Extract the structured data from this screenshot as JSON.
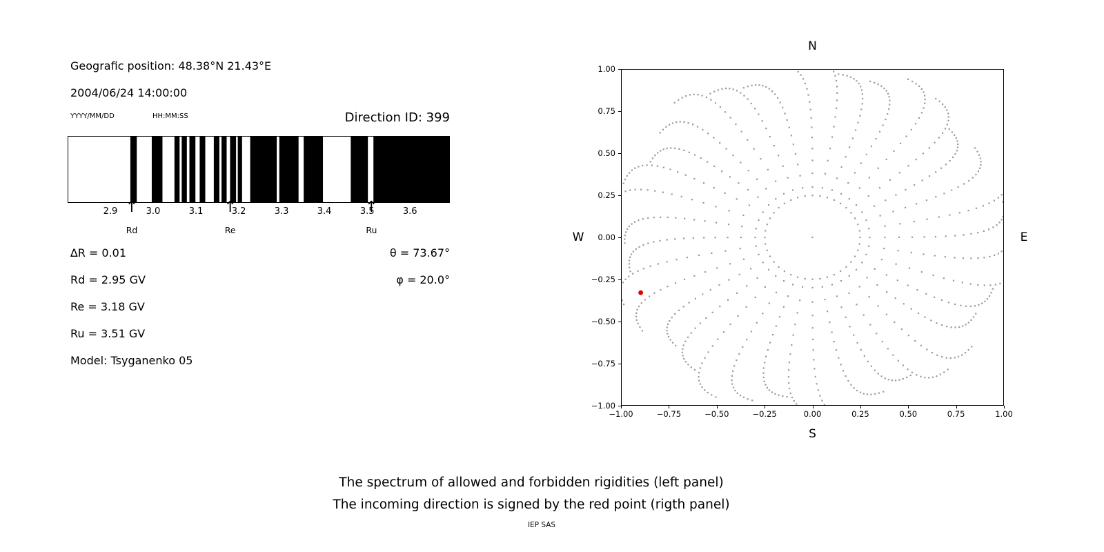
{
  "colors": {
    "band": "#000000",
    "frame": "#000000",
    "dot": "#999999",
    "red_point": "#e00000",
    "text": "#000000",
    "background": "#ffffff"
  },
  "left_panel": {
    "geo_position": "Geografic position: 48.38°N 21.43°E",
    "datetime": "2004/06/24 14:00:00",
    "date_format_label": "YYYY/MM/DD",
    "time_format_label": "HH:MM:SS",
    "direction_id": "Direction ID: 399",
    "delta_r": "∆R = 0.01",
    "theta": "θ = 73.67°",
    "phi": "φ = 20.0°",
    "rd": "Rd = 2.95 GV",
    "re": "Re = 3.18 GV",
    "ru": "Ru = 3.51 GV",
    "model": "Model: Tsyganenko 05"
  },
  "captions": {
    "line1": "The spectrum of allowed and forbidden rigidities (left panel)",
    "line2": "The incoming direction is signed by the red point (rigth panel)",
    "credit": "IEP SAS"
  },
  "chart_data": [
    {
      "type": "bar",
      "description": "Binary spectrum of allowed (black) and forbidden (white) rigidities",
      "xlim": [
        2.8,
        3.69
      ],
      "xticks": [
        2.9,
        3.0,
        3.1,
        3.2,
        3.3,
        3.4,
        3.5,
        3.6
      ],
      "xtick_labels": [
        "2.9",
        "3.0",
        "3.1",
        "3.2",
        "3.3",
        "3.4",
        "3.5",
        "3.6"
      ],
      "delta_r_gv": 0.01,
      "allowed_bands_gv": [
        [
          2.945,
          2.96
        ],
        [
          2.995,
          3.02
        ],
        [
          3.048,
          3.06
        ],
        [
          3.065,
          3.077
        ],
        [
          3.083,
          3.097
        ],
        [
          3.107,
          3.12
        ],
        [
          3.14,
          3.153
        ],
        [
          3.158,
          3.17
        ],
        [
          3.178,
          3.192
        ],
        [
          3.196,
          3.206
        ],
        [
          3.225,
          3.287
        ],
        [
          3.293,
          3.338
        ],
        [
          3.35,
          3.395
        ],
        [
          3.46,
          3.5
        ],
        [
          3.513,
          3.69
        ]
      ],
      "markers": [
        {
          "label": "Rd",
          "value": 2.95
        },
        {
          "label": "Re",
          "value": 3.18
        },
        {
          "label": "Ru",
          "value": 3.51
        }
      ],
      "grid": false,
      "legend": false
    },
    {
      "type": "scatter",
      "description": "Incoming direction sky map; radial spokes of gray dots, red point marks incoming direction",
      "xlim": [
        -1.0,
        1.0
      ],
      "ylim": [
        -1.0,
        1.0
      ],
      "xticks": [
        -1.0,
        -0.75,
        -0.5,
        -0.25,
        0.0,
        0.25,
        0.5,
        0.75,
        1.0
      ],
      "xtick_labels": [
        "−1.00",
        "−0.75",
        "−0.50",
        "−0.25",
        "0.00",
        "0.25",
        "0.50",
        "0.75",
        "1.00"
      ],
      "yticks": [
        -1.0,
        -0.75,
        -0.5,
        -0.25,
        0.0,
        0.25,
        0.5,
        0.75,
        1.0
      ],
      "ytick_labels": [
        "−1.00",
        "−0.75",
        "−0.50",
        "−0.25",
        "0.00",
        "0.25",
        "0.50",
        "0.75",
        "1.00"
      ],
      "compass": {
        "top": "N",
        "bottom": "S",
        "left": "W",
        "right": "E"
      },
      "spokes": {
        "count": 36,
        "start_angle_deg": 0,
        "step_deg": 10,
        "r_min": 0.3,
        "r_max": 1.02,
        "r_max_variation": 0.06,
        "dots_per_spoke": 22,
        "curvature_deg": 12
      },
      "inner_ring": {
        "radius": 0.25,
        "count": 40
      },
      "center_dot": {
        "x": 0.0,
        "y": 0.0
      },
      "red_point": {
        "x": -0.9,
        "y": -0.33
      },
      "dot_color": "#999999",
      "red_color": "#e00000",
      "grid": false,
      "legend": false
    }
  ]
}
